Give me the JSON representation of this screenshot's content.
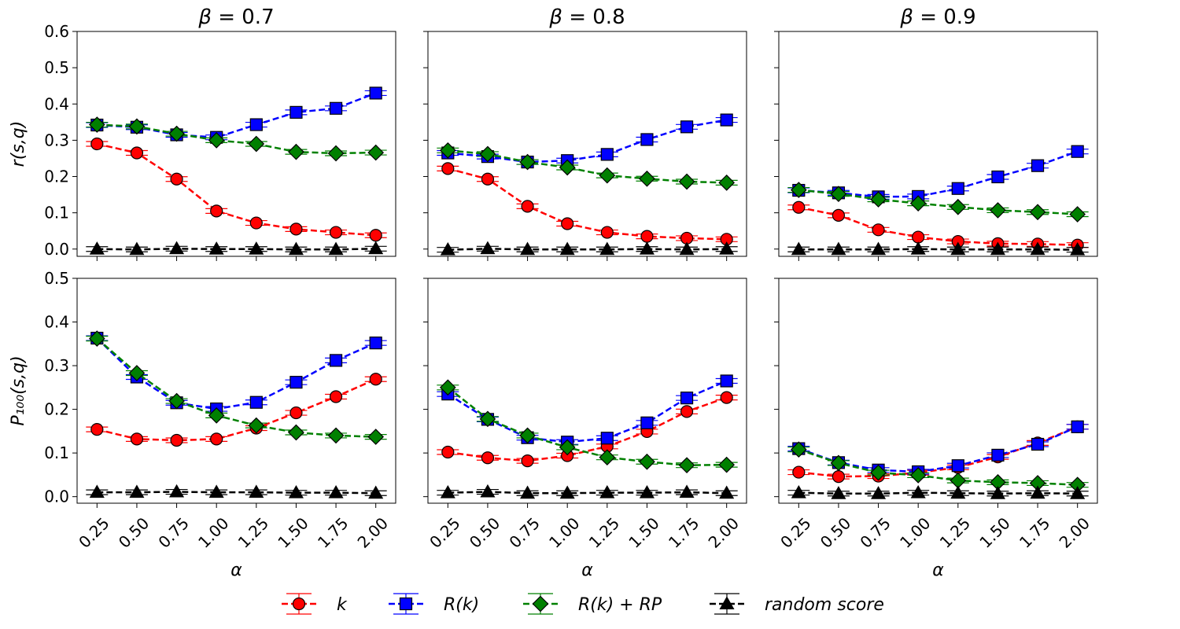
{
  "chart_data": {
    "type": "line",
    "x_label": "α",
    "x_ticks": [
      "0.25",
      "0.50",
      "0.75",
      "1.00",
      "1.25",
      "1.50",
      "1.75",
      "2.00"
    ],
    "x": [
      0.25,
      0.5,
      0.75,
      1.0,
      1.25,
      1.5,
      1.75,
      2.0
    ],
    "columns": [
      {
        "title": "β = 0.7"
      },
      {
        "title": "β = 0.8"
      },
      {
        "title": "β = 0.9"
      }
    ],
    "rows": [
      {
        "ylabel": "r(s,q)",
        "ylim": [
          -0.02,
          0.6
        ],
        "yticks": [
          "0.0",
          "0.1",
          "0.2",
          "0.3",
          "0.4",
          "0.5",
          "0.6"
        ]
      },
      {
        "ylabel": "P₁₀₀(s,q)",
        "ylim": [
          -0.015,
          0.5
        ],
        "yticks": [
          "0.0",
          "0.1",
          "0.2",
          "0.3",
          "0.4",
          "0.5"
        ]
      }
    ],
    "series_styles": [
      {
        "name": "k",
        "color": "#ff0000",
        "marker": "circle"
      },
      {
        "name": "R(k)",
        "color": "#0000ff",
        "marker": "square"
      },
      {
        "name": "R(k) + RP",
        "color": "#008000",
        "marker": "diamond"
      },
      {
        "name": "random score",
        "color": "#000000",
        "marker": "triangle"
      }
    ],
    "panels": [
      {
        "row": 0,
        "col": 0,
        "series": [
          {
            "name": "k",
            "values": [
              0.29,
              0.265,
              0.193,
              0.105,
              0.072,
              0.055,
              0.046,
              0.038
            ]
          },
          {
            "name": "R(k)",
            "values": [
              0.342,
              0.336,
              0.315,
              0.308,
              0.343,
              0.377,
              0.388,
              0.43
            ]
          },
          {
            "name": "R(k) + RP",
            "values": [
              0.343,
              0.338,
              0.318,
              0.3,
              0.29,
              0.268,
              0.264,
              0.266
            ]
          },
          {
            "name": "random score",
            "values": [
              0.0,
              -0.001,
              0.001,
              0.0,
              0.0,
              -0.001,
              -0.001,
              0.001
            ]
          }
        ]
      },
      {
        "row": 0,
        "col": 1,
        "series": [
          {
            "name": "k",
            "values": [
              0.222,
              0.193,
              0.118,
              0.07,
              0.046,
              0.035,
              0.03,
              0.027
            ]
          },
          {
            "name": "R(k)",
            "values": [
              0.265,
              0.255,
              0.24,
              0.244,
              0.261,
              0.302,
              0.337,
              0.356
            ]
          },
          {
            "name": "R(k) + RP",
            "values": [
              0.272,
              0.262,
              0.24,
              0.225,
              0.203,
              0.194,
              0.186,
              0.183
            ]
          },
          {
            "name": "random score",
            "values": [
              -0.002,
              0.001,
              -0.001,
              -0.001,
              -0.001,
              0.0,
              -0.001,
              0.0
            ]
          }
        ]
      },
      {
        "row": 0,
        "col": 2,
        "series": [
          {
            "name": "k",
            "values": [
              0.115,
              0.093,
              0.053,
              0.033,
              0.021,
              0.015,
              0.014,
              0.011
            ]
          },
          {
            "name": "R(k)",
            "values": [
              0.162,
              0.155,
              0.144,
              0.145,
              0.167,
              0.199,
              0.23,
              0.269
            ]
          },
          {
            "name": "R(k) + RP",
            "values": [
              0.163,
              0.152,
              0.137,
              0.126,
              0.116,
              0.107,
              0.102,
              0.096
            ]
          },
          {
            "name": "random score",
            "values": [
              -0.001,
              -0.001,
              -0.001,
              0.0,
              -0.001,
              -0.001,
              -0.001,
              -0.002
            ]
          }
        ]
      },
      {
        "row": 1,
        "col": 0,
        "series": [
          {
            "name": "k",
            "values": [
              0.154,
              0.132,
              0.129,
              0.132,
              0.157,
              0.192,
              0.229,
              0.269
            ]
          },
          {
            "name": "R(k)",
            "values": [
              0.363,
              0.274,
              0.215,
              0.201,
              0.216,
              0.262,
              0.312,
              0.352
            ]
          },
          {
            "name": "R(k) + RP",
            "values": [
              0.362,
              0.283,
              0.219,
              0.186,
              0.163,
              0.147,
              0.14,
              0.137
            ]
          },
          {
            "name": "random score",
            "values": [
              0.01,
              0.01,
              0.011,
              0.01,
              0.01,
              0.009,
              0.009,
              0.008
            ]
          }
        ]
      },
      {
        "row": 1,
        "col": 1,
        "series": [
          {
            "name": "k",
            "values": [
              0.102,
              0.089,
              0.082,
              0.094,
              0.115,
              0.149,
              0.195,
              0.227
            ]
          },
          {
            "name": "R(k)",
            "values": [
              0.235,
              0.177,
              0.135,
              0.125,
              0.134,
              0.169,
              0.226,
              0.265
            ]
          },
          {
            "name": "R(k) + RP",
            "values": [
              0.25,
              0.178,
              0.14,
              0.113,
              0.09,
              0.08,
              0.072,
              0.073
            ]
          },
          {
            "name": "random score",
            "values": [
              0.009,
              0.011,
              0.008,
              0.008,
              0.009,
              0.009,
              0.01,
              0.008
            ]
          }
        ]
      },
      {
        "row": 1,
        "col": 2,
        "series": [
          {
            "name": "k",
            "values": [
              0.056,
              0.046,
              0.047,
              0.055,
              0.067,
              0.091,
              0.123,
              0.16
            ]
          },
          {
            "name": "R(k)",
            "values": [
              0.11,
              0.078,
              0.061,
              0.057,
              0.071,
              0.095,
              0.12,
              0.16
            ]
          },
          {
            "name": "R(k) + RP",
            "values": [
              0.108,
              0.077,
              0.055,
              0.049,
              0.037,
              0.033,
              0.031,
              0.027
            ]
          },
          {
            "name": "random score",
            "values": [
              0.009,
              0.007,
              0.007,
              0.009,
              0.008,
              0.007,
              0.008,
              0.007
            ]
          }
        ]
      }
    ],
    "legend": {
      "placement": "bottom-center",
      "entries": [
        "k",
        "R(k)",
        "R(k) + RP",
        "random score"
      ]
    },
    "grid": false
  }
}
